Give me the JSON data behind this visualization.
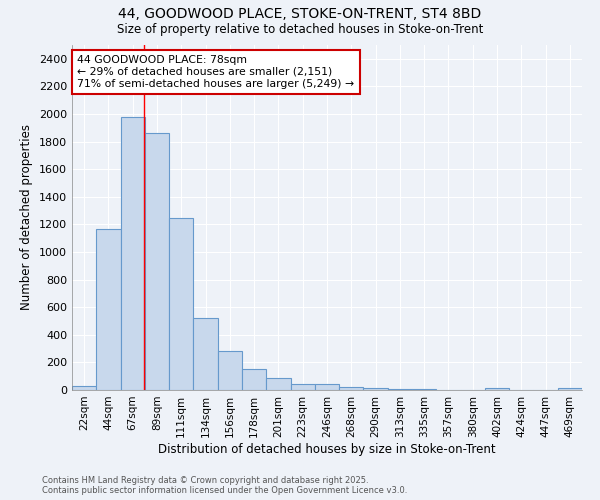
{
  "title_line1": "44, GOODWOOD PLACE, STOKE-ON-TRENT, ST4 8BD",
  "title_line2": "Size of property relative to detached houses in Stoke-on-Trent",
  "xlabel": "Distribution of detached houses by size in Stoke-on-Trent",
  "ylabel": "Number of detached properties",
  "categories": [
    "22sqm",
    "44sqm",
    "67sqm",
    "89sqm",
    "111sqm",
    "134sqm",
    "156sqm",
    "178sqm",
    "201sqm",
    "223sqm",
    "246sqm",
    "268sqm",
    "290sqm",
    "313sqm",
    "335sqm",
    "357sqm",
    "380sqm",
    "402sqm",
    "424sqm",
    "447sqm",
    "469sqm"
  ],
  "values": [
    30,
    1170,
    1980,
    1860,
    1245,
    520,
    280,
    155,
    90,
    45,
    40,
    22,
    18,
    8,
    5,
    3,
    2,
    18,
    2,
    1,
    15
  ],
  "bar_color": "#c8d8ec",
  "bar_edge_color": "#6699cc",
  "red_line_x": 2.48,
  "annotation_text_line1": "44 GOODWOOD PLACE: 78sqm",
  "annotation_text_line2": "← 29% of detached houses are smaller (2,151)",
  "annotation_text_line3": "71% of semi-detached houses are larger (5,249) →",
  "annotation_box_color": "#ffffff",
  "annotation_edge_color": "#cc0000",
  "background_color": "#eef2f8",
  "grid_color": "#ffffff",
  "ylim": [
    0,
    2500
  ],
  "yticks": [
    0,
    200,
    400,
    600,
    800,
    1000,
    1200,
    1400,
    1600,
    1800,
    2000,
    2200,
    2400
  ],
  "footer_line1": "Contains HM Land Registry data © Crown copyright and database right 2025.",
  "footer_line2": "Contains public sector information licensed under the Open Government Licence v3.0."
}
